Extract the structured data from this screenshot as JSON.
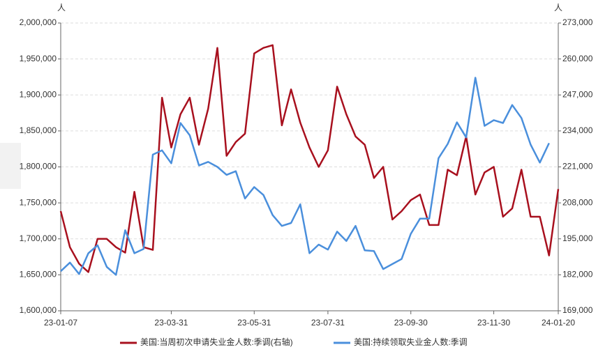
{
  "chart_data": {
    "type": "line",
    "y_unit": "人",
    "y2_unit": "人",
    "categories": [
      "23-01-07",
      null,
      null,
      null,
      null,
      null,
      null,
      null,
      null,
      null,
      null,
      null,
      "23-03-31",
      null,
      null,
      null,
      null,
      null,
      null,
      null,
      null,
      "23-05-31",
      null,
      null,
      null,
      null,
      null,
      null,
      null,
      "23-07-31",
      null,
      null,
      null,
      null,
      null,
      null,
      null,
      null,
      "23-09-30",
      null,
      null,
      null,
      null,
      null,
      null,
      null,
      null,
      "23-11-30",
      null,
      null,
      null,
      null,
      null,
      null,
      "24-01-20"
    ],
    "ylim": [
      1600000,
      2000000
    ],
    "yticks": [
      {
        "value": 1600000,
        "label": "1,600,000"
      },
      {
        "value": 1650000,
        "label": "1,650,000"
      },
      {
        "value": 1700000,
        "label": "1,700,000"
      },
      {
        "value": 1750000,
        "label": "1,750,000"
      },
      {
        "value": 1800000,
        "label": "1,800,000"
      },
      {
        "value": 1850000,
        "label": "1,850,000"
      },
      {
        "value": 1900000,
        "label": "1,900,000"
      },
      {
        "value": 1950000,
        "label": "1,950,000"
      },
      {
        "value": 2000000,
        "label": "2,000,000"
      }
    ],
    "y2lim": [
      169000,
      273000
    ],
    "y2ticks": [
      {
        "value": 169000,
        "label": "169,000"
      },
      {
        "value": 182000,
        "label": "182,000"
      },
      {
        "value": 195000,
        "label": "195,000"
      },
      {
        "value": 208000,
        "label": "208,000"
      },
      {
        "value": 221000,
        "label": "221,000"
      },
      {
        "value": 234000,
        "label": "234,000"
      },
      {
        "value": 247000,
        "label": "247,000"
      },
      {
        "value": 260000,
        "label": "260,000"
      },
      {
        "value": 273000,
        "label": "273,000"
      }
    ],
    "grid": true,
    "legend": "bottom",
    "series": [
      {
        "name": "美国:当周初次申请失业金人数:季调(右轴)",
        "color": "#a8101e",
        "axis": "y2",
        "values": [
          205000,
          192000,
          186000,
          183000,
          195000,
          195000,
          192000,
          190000,
          212000,
          192000,
          191000,
          246000,
          228000,
          240000,
          246000,
          229000,
          242000,
          264000,
          225000,
          230000,
          233000,
          262000,
          264000,
          265000,
          236000,
          249000,
          237000,
          228000,
          221000,
          227000,
          250000,
          240000,
          232000,
          229000,
          217000,
          221000,
          202000,
          205000,
          209000,
          211000,
          200000,
          200000,
          220000,
          218000,
          232000,
          211000,
          219000,
          221000,
          203000,
          206000,
          220000,
          203000,
          203000,
          189000,
          213000
        ]
      },
      {
        "name": "美国:持续领取失业金人数:季调",
        "color": "#4a8fdc",
        "values": [
          1655000,
          1667000,
          1651000,
          1680000,
          1691000,
          1661000,
          1650000,
          1712000,
          1680000,
          1686000,
          1817000,
          1823000,
          1805000,
          1861000,
          1844000,
          1802000,
          1807000,
          1800000,
          1789000,
          1794000,
          1756000,
          1772000,
          1761000,
          1733000,
          1718000,
          1722000,
          1748000,
          1680000,
          1692000,
          1685000,
          1710000,
          1697000,
          1718000,
          1684000,
          1683000,
          1658000,
          1665000,
          1672000,
          1707000,
          1728000,
          1728000,
          1812000,
          1832000,
          1862000,
          1841000,
          1924000,
          1857000,
          1865000,
          1861000,
          1886000,
          1868000,
          1831000,
          1806000,
          1833000,
          null
        ]
      }
    ]
  }
}
